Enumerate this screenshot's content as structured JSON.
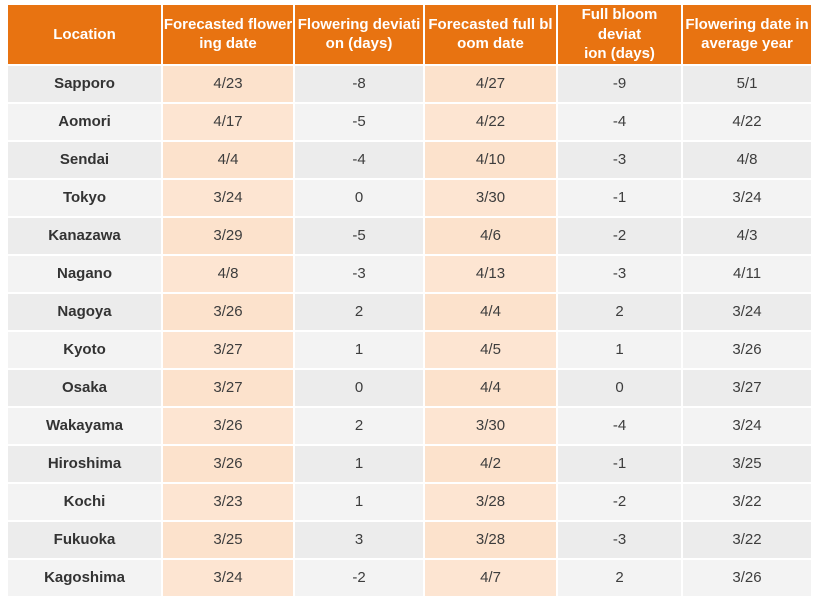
{
  "colors": {
    "header_bg": "#E87311",
    "header_text": "#FFFFFF",
    "date_cell_bg_odd": "#FCE2CC",
    "date_cell_bg_even": "#FDE5D2",
    "row_odd_bg": "#ECECEC",
    "row_even_bg": "#F3F3F3",
    "cell_text": "#3D3D3D",
    "gridline": "#FFFFFF"
  },
  "header_display": [
    {
      "line1": "Location",
      "line2": ""
    },
    {
      "line1": "Forecasted flower",
      "line2": "ing date"
    },
    {
      "line1": "Flowering deviati",
      "line2": "on (days)"
    },
    {
      "line1": "Forecasted full bl",
      "line2": "oom date"
    },
    {
      "line1": "Full bloom deviat",
      "line2": "ion (days)"
    },
    {
      "line1": "Flowering date in",
      "line2": "average year"
    }
  ],
  "chart_data": {
    "type": "table",
    "columns": [
      "Location",
      "Forecasted flowering date",
      "Flowering deviation (days)",
      "Forecasted full bloom date",
      "Full bloom deviation (days)",
      "Flowering date in average year"
    ],
    "rows": [
      [
        "Sapporo",
        "4/23",
        "-8",
        "4/27",
        "-9",
        "5/1"
      ],
      [
        "Aomori",
        "4/17",
        "-5",
        "4/22",
        "-4",
        "4/22"
      ],
      [
        "Sendai",
        "4/4",
        "-4",
        "4/10",
        "-3",
        "4/8"
      ],
      [
        "Tokyo",
        "3/24",
        "0",
        "3/30",
        "-1",
        "3/24"
      ],
      [
        "Kanazawa",
        "3/29",
        "-5",
        "4/6",
        "-2",
        "4/3"
      ],
      [
        "Nagano",
        "4/8",
        "-3",
        "4/13",
        "-3",
        "4/11"
      ],
      [
        "Nagoya",
        "3/26",
        "2",
        "4/4",
        "2",
        "3/24"
      ],
      [
        "Kyoto",
        "3/27",
        "1",
        "4/5",
        "1",
        "3/26"
      ],
      [
        "Osaka",
        "3/27",
        "0",
        "4/4",
        "0",
        "3/27"
      ],
      [
        "Wakayama",
        "3/26",
        "2",
        "3/30",
        "-4",
        "3/24"
      ],
      [
        "Hiroshima",
        "3/26",
        "1",
        "4/2",
        "-1",
        "3/25"
      ],
      [
        "Kochi",
        "3/23",
        "1",
        "3/28",
        "-2",
        "3/22"
      ],
      [
        "Fukuoka",
        "3/25",
        "3",
        "3/28",
        "-3",
        "3/22"
      ],
      [
        "Kagoshima",
        "3/24",
        "-2",
        "4/7",
        "2",
        "3/26"
      ]
    ]
  }
}
